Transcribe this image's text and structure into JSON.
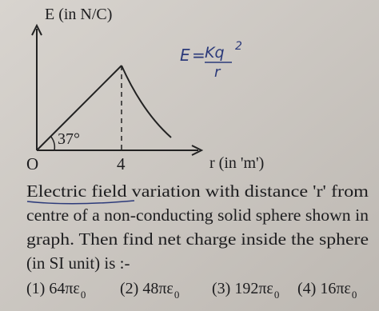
{
  "graph": {
    "y_axis_label": "E (in N/C)",
    "x_axis_label": "r (in 'm')",
    "origin_label": "O",
    "x_mark_label": "4",
    "angle_label": "37°"
  },
  "annotation": {
    "lhs": "E",
    "equals": "=",
    "numerator": "Kq",
    "exponent": "2",
    "denominator": "r"
  },
  "question": {
    "lines": [
      "Electric field variation with distance 'r' from",
      "centre of a non-conducting solid sphere shown in",
      "graph. Then find net charge inside the sphere",
      "(in SI unit) is :-"
    ]
  },
  "options": [
    {
      "text": "(1) 64πε",
      "subscript": "0"
    },
    {
      "text": "(2) 48πε",
      "subscript": "0"
    },
    {
      "text": "(3) 192πε",
      "subscript": "0"
    },
    {
      "text": "(4) 16πε",
      "subscript": "0"
    }
  ]
}
